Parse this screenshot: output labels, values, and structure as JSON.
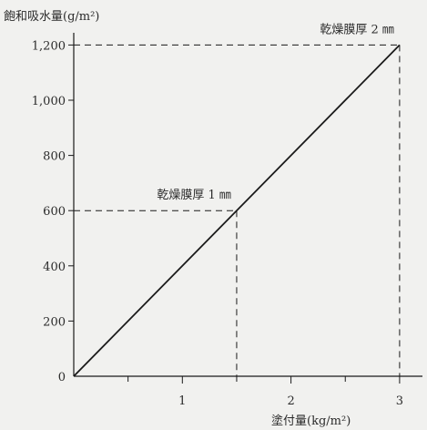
{
  "chart_data": {
    "type": "line",
    "ylabel": "飽和吸水量(g/m²)",
    "xlabel": "塗付量(kg/m²)",
    "xlim": [
      0,
      3.2
    ],
    "ylim": [
      0,
      1250
    ],
    "x_ticks": [
      1,
      2,
      3
    ],
    "x_minor_ticks": [
      0.5,
      1.5,
      2.5
    ],
    "y_ticks": [
      {
        "value": 0,
        "label": "0"
      },
      {
        "value": 200,
        "label": "200"
      },
      {
        "value": 400,
        "label": "400"
      },
      {
        "value": 600,
        "label": "600"
      },
      {
        "value": 800,
        "label": "800"
      },
      {
        "value": 1000,
        "label": "1,000"
      },
      {
        "value": 1200,
        "label": "1,200"
      }
    ],
    "series": [
      {
        "x": [
          0,
          3
        ],
        "y": [
          0,
          1200
        ],
        "color": "#1a1a1a"
      }
    ],
    "annotations": [
      {
        "text": "乾燥膜厚 1 ㎜",
        "x": 1.5,
        "y": 600
      },
      {
        "text": "乾燥膜厚 2 ㎜",
        "x": 3,
        "y": 1200
      }
    ],
    "grid": false,
    "colors": {
      "background": "#f1f1ef",
      "ink": "#1a1a1a"
    }
  }
}
